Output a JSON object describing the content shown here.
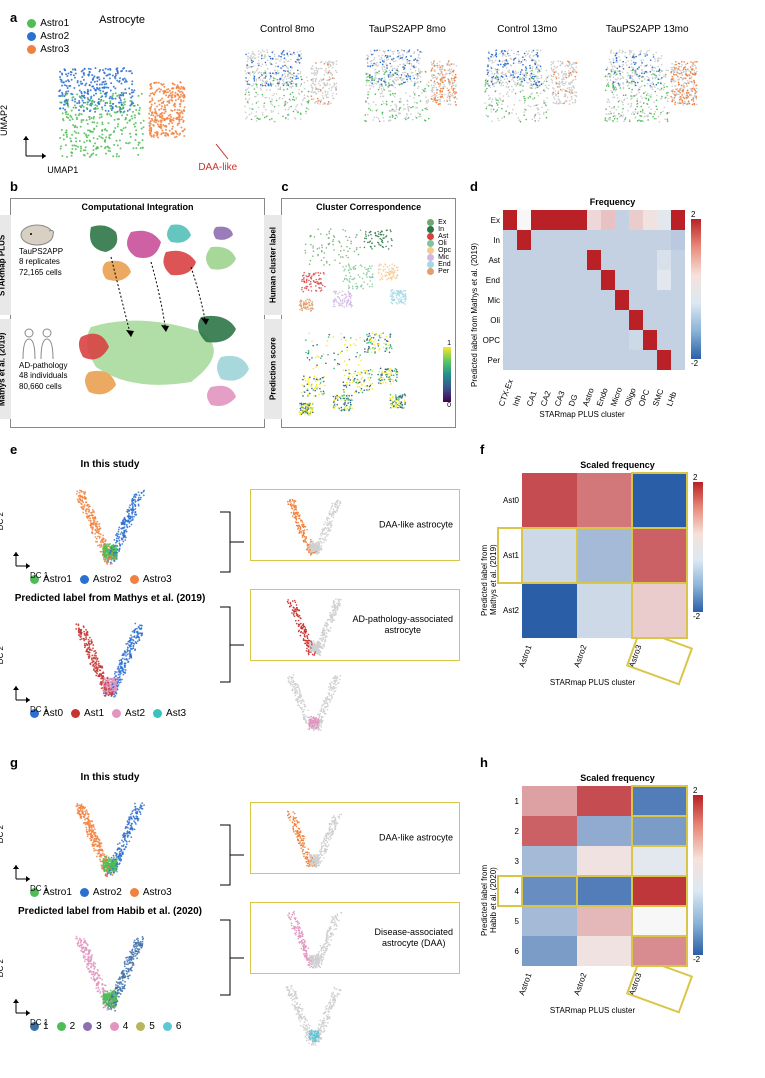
{
  "colors": {
    "astro1": "#4fbd56",
    "astro2": "#2b6fd0",
    "astro3": "#f1813e",
    "grey": "#cccccc",
    "ex": "#6fa86e",
    "in": "#2d7547",
    "ast": "#d84142",
    "oli": "#80c498",
    "opc": "#f6c98d",
    "mic": "#d0b9e1",
    "end": "#a3d8e8",
    "per": "#e19d6b",
    "ast0": "#2b6fd0",
    "ast1": "#c8322f",
    "ast2": "#e295c0",
    "ast3": "#39c1bb",
    "h1": "#3c6fa8",
    "h2": "#4fbd56",
    "h3": "#8e6fb0",
    "h4": "#e295c0",
    "h5": "#b9b55e",
    "h6": "#5fc6d6"
  },
  "panel_a": {
    "title": "Astrocyte",
    "legend": [
      "Astro1",
      "Astro2",
      "Astro3"
    ],
    "umap_x": "UMAP1",
    "umap_y": "UMAP2",
    "daa_label": "DAA-like",
    "conditions": [
      "Control 8mo",
      "TauPS2APP 8mo",
      "Control 13mo",
      "TauPS2APP 13mo"
    ]
  },
  "panel_b": {
    "title": "Computational Integration",
    "starmap_label": "STARmap PLUS",
    "starmap_info1": "TauPS2APP",
    "starmap_info2": "8 replicates",
    "starmap_info3": "72,165 cells",
    "mathys_label": "Mathys et al. (2019)",
    "mathys_info1": "AD-pathology",
    "mathys_info2": "48 individuals",
    "mathys_info3": "80,660 cells"
  },
  "panel_c": {
    "title": "Cluster Correspondence",
    "top_label": "Human cluster label",
    "bot_label": "Prediction score",
    "legend": [
      "Ex",
      "In",
      "Ast",
      "Oli",
      "Opc",
      "Mic",
      "End",
      "Per"
    ],
    "scale_min": 0.0,
    "scale_max": 1.0
  },
  "panel_d": {
    "title": "Frequency",
    "ylabel": "Predicted label from Mathys et al. (2019)",
    "xlabel": "STARmap PLUS cluster",
    "rows": [
      "Ex",
      "In",
      "Ast",
      "End",
      "Mic",
      "Oli",
      "OPC",
      "Per"
    ],
    "cols": [
      "CTX-Ex",
      "Inh",
      "CA1",
      "CA2",
      "CA3",
      "DG",
      "Astro",
      "Endo",
      "Micro",
      "Oligo",
      "OPC",
      "SMC",
      "LHb"
    ],
    "scale_min": -2.0,
    "scale_max": 2.0,
    "values": [
      [
        2.0,
        0.0,
        2.0,
        2.0,
        2.0,
        2.0,
        0.3,
        0.5,
        -0.5,
        0.4,
        0.2,
        -0.2,
        2.0
      ],
      [
        -0.5,
        2.0,
        -0.5,
        -0.5,
        -0.5,
        -0.5,
        -0.5,
        -0.5,
        -0.5,
        -0.5,
        -0.5,
        -0.5,
        -0.6
      ],
      [
        -0.5,
        -0.5,
        -0.5,
        -0.5,
        -0.5,
        -0.5,
        2.0,
        -0.5,
        -0.5,
        -0.5,
        -0.5,
        -0.3,
        -0.5
      ],
      [
        -0.5,
        -0.5,
        -0.5,
        -0.5,
        -0.5,
        -0.5,
        -0.5,
        2.0,
        -0.5,
        -0.5,
        -0.5,
        -0.2,
        -0.5
      ],
      [
        -0.5,
        -0.5,
        -0.5,
        -0.5,
        -0.5,
        -0.5,
        -0.5,
        -0.5,
        2.0,
        -0.5,
        -0.5,
        -0.5,
        -0.5
      ],
      [
        -0.5,
        -0.5,
        -0.5,
        -0.5,
        -0.5,
        -0.5,
        -0.5,
        -0.5,
        -0.5,
        2.0,
        -0.5,
        -0.5,
        -0.5
      ],
      [
        -0.5,
        -0.5,
        -0.5,
        -0.5,
        -0.5,
        -0.5,
        -0.5,
        -0.5,
        -0.5,
        -0.4,
        2.0,
        -0.5,
        -0.5
      ],
      [
        -0.5,
        -0.5,
        -0.5,
        -0.5,
        -0.5,
        -0.5,
        -0.5,
        -0.5,
        -0.5,
        -0.5,
        -0.5,
        2.0,
        -0.5
      ]
    ]
  },
  "panel_e": {
    "title1": "In this study",
    "title2": "Predicted label from Mathys et al. (2019)",
    "dc_x": "DC 1",
    "dc_y": "DC 2",
    "legend1": [
      "Astro1",
      "Astro2",
      "Astro3"
    ],
    "legend2": [
      "Ast0",
      "Ast1",
      "Ast2",
      "Ast3"
    ],
    "box1_label": "DAA-like astrocyte",
    "box2_label": "AD-pathology-associated\nastrocyte"
  },
  "panel_f": {
    "title": "Scaled frequency",
    "ylabel": "Predicted label from\nMathys et al. (2019)",
    "xlabel": "STARmap PLUS cluster",
    "rows": [
      "Ast0",
      "Ast1",
      "Ast2"
    ],
    "cols": [
      "Astro1",
      "Astro2",
      "Astro3"
    ],
    "scale_min": -2.0,
    "scale_max": 2.0,
    "highlight_row": 1,
    "highlight_col": 2,
    "values": [
      [
        1.6,
        1.2,
        -2.0
      ],
      [
        -0.4,
        -0.8,
        1.4
      ],
      [
        -2.0,
        -0.4,
        0.4
      ]
    ]
  },
  "panel_g": {
    "title1": "In this study",
    "title2": "Predicted label from Habib et al. (2020)",
    "dc_x": "DC 1",
    "dc_y": "DC 2",
    "legend1": [
      "Astro1",
      "Astro2",
      "Astro3"
    ],
    "legend2": [
      "1",
      "2",
      "3",
      "4",
      "5",
      "6"
    ],
    "box1_label": "DAA-like astrocyte",
    "box2_label": "Disease-associated\nastrocyte (DAA)"
  },
  "panel_h": {
    "title": "Scaled frequency",
    "ylabel": "Predicted label from\nHabib et al. (2020)",
    "xlabel": "STARmap PLUS cluster",
    "rows": [
      "1",
      "2",
      "3",
      "4",
      "5",
      "6"
    ],
    "cols": [
      "Astro1",
      "Astro2",
      "Astro3"
    ],
    "scale_min": -2.0,
    "scale_max": 2.0,
    "highlight_row": 3,
    "highlight_col": 2,
    "values": [
      [
        0.8,
        1.6,
        -1.6
      ],
      [
        1.4,
        -1.0,
        -1.2
      ],
      [
        -0.8,
        0.2,
        -0.2
      ],
      [
        -1.4,
        -1.6,
        1.8
      ],
      [
        -0.8,
        0.6,
        0.0
      ],
      [
        -1.2,
        0.2,
        1.0
      ]
    ]
  }
}
